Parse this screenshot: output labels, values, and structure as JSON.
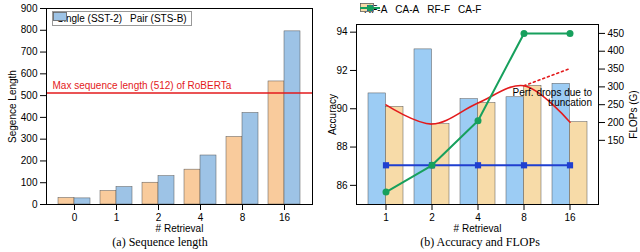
{
  "chart_data": [
    {
      "type": "bar",
      "title": "(a) Sequence length",
      "x_label": "# Retrieval",
      "y_label": "Segence Length",
      "categories": [
        0,
        1,
        2,
        4,
        8,
        16
      ],
      "series": [
        {
          "name": "Single (SST-2)",
          "color": "#f9cb9c",
          "values": [
            30,
            62,
            100,
            160,
            310,
            565
          ]
        },
        {
          "name": "Pair (STS-B)",
          "color": "#9dc3e6",
          "values": [
            28,
            80,
            130,
            225,
            420,
            795
          ]
        }
      ],
      "ylim": [
        0,
        900
      ],
      "yticks": [
        0,
        100,
        200,
        300,
        400,
        500,
        600,
        700,
        800,
        900
      ],
      "reference_line": {
        "value": 512,
        "label": "Max sequence length (512) of RoBERTa",
        "color": "#e31a1c"
      },
      "legend": "upper left"
    },
    {
      "type": "bar",
      "title": "(b) Accuracy and FLOPs",
      "x_label": "# Retrieval",
      "y_label": "Accuracy",
      "y2_label": "FLOPs (G)",
      "categories": [
        1,
        2,
        4,
        8,
        16
      ],
      "series": [
        {
          "name": "RF-A",
          "type": "bar",
          "color": "#9cccf4",
          "values": [
            90.8,
            93.1,
            90.5,
            90.6,
            91.3
          ]
        },
        {
          "name": "CA-A",
          "type": "bar",
          "color": "#f7dba8",
          "values": [
            90.1,
            89.2,
            90.3,
            91.2,
            89.3
          ]
        },
        {
          "name": "RF-F",
          "type": "line",
          "axis": "y2",
          "marker": "square",
          "color": "#1f3fd0",
          "values": [
            80,
            80,
            80,
            80,
            80
          ]
        },
        {
          "name": "CA-F",
          "type": "line",
          "axis": "y2",
          "marker": "circle",
          "color": "#17a05d",
          "values": [
            5,
            80,
            205,
            450,
            450
          ]
        }
      ],
      "ylim": [
        85,
        94.4
      ],
      "yticks": [
        86,
        88,
        90,
        92,
        94
      ],
      "y2lim": [
        -30,
        475
      ],
      "y2ticks": [
        150,
        200,
        250,
        300,
        350,
        400,
        450
      ],
      "trend": {
        "values": [
          90.2,
          89.2,
          90.3,
          91.2,
          89.3
        ],
        "color": "#e31a1c",
        "line_style": "solid"
      },
      "projection": {
        "x": [
          8,
          16
        ],
        "values": [
          91.2,
          92.1
        ],
        "color": "#e31a1c",
        "line_style": "dotted"
      },
      "annotation": {
        "text": "Perf. drops due to truncation",
        "color": "#000000"
      },
      "legend": "top"
    }
  ]
}
